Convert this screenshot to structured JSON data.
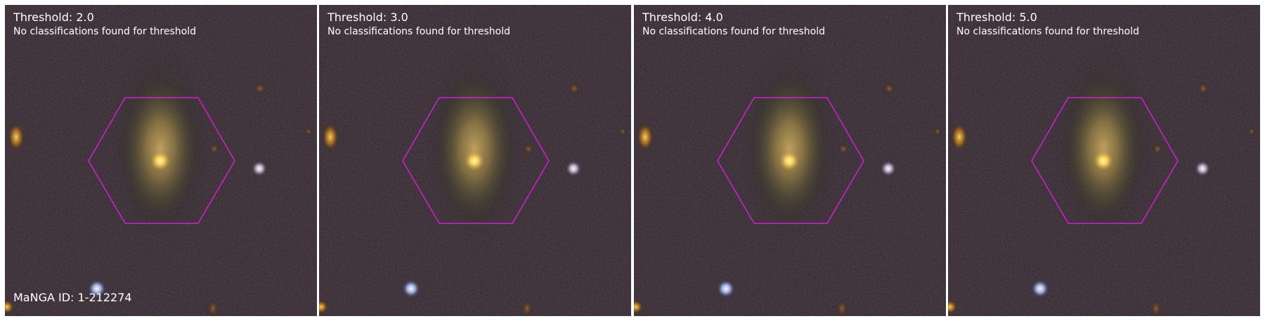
{
  "figure": {
    "panels": [
      {
        "title": "Threshold: 2.0",
        "subtitle": "No classifications found for threshold"
      },
      {
        "title": "Threshold: 3.0",
        "subtitle": "No classifications found for threshold"
      },
      {
        "title": "Threshold: 4.0",
        "subtitle": "No classifications found for threshold"
      },
      {
        "title": "Threshold: 5.0",
        "subtitle": "No classifications found for threshold"
      }
    ],
    "manga_id_label": "MaNGA ID: 1-212274",
    "colors": {
      "background": "#000000",
      "hexagon_outline": "#d020d0",
      "text": "#ffffff"
    }
  }
}
